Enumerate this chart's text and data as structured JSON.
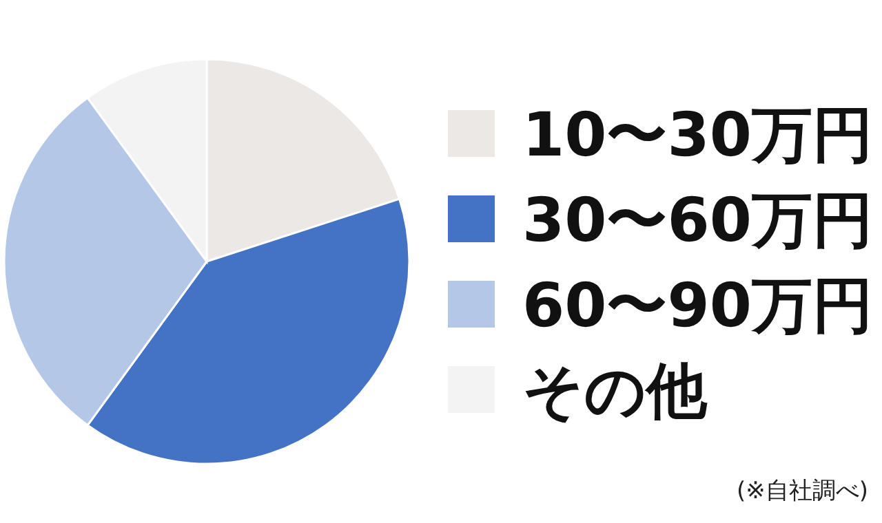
{
  "chart_data": {
    "type": "pie",
    "categories": [
      "10〜30万円",
      "30〜60万円",
      "60〜90万円",
      "その他"
    ],
    "values": [
      20,
      40,
      30,
      10
    ],
    "colors": [
      "#ebe8e6",
      "#4472c4",
      "#b4c7e7",
      "#f3f3f3"
    ],
    "legend": "right",
    "annotations": [
      "(※自社調べ)"
    ]
  }
}
